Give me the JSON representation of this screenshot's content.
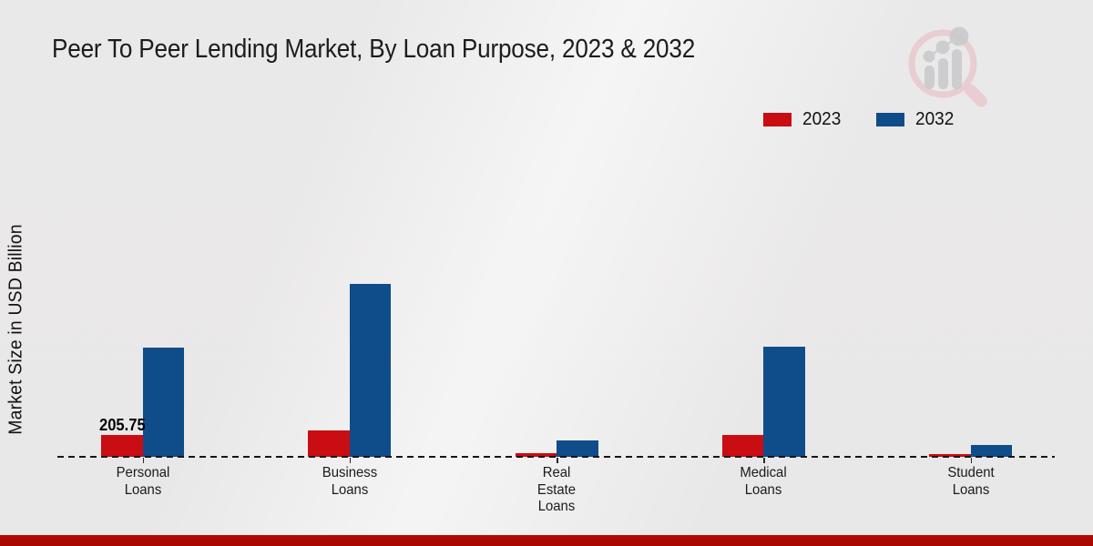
{
  "chart_data": {
    "type": "bar",
    "title": "Peer To Peer Lending Market, By Loan Purpose, 2023 & 2032",
    "ylabel": "Market Size in USD Billion",
    "xlabel": "",
    "categories": [
      "Personal Loans",
      "Business Loans",
      "Real Estate Loans",
      "Medical Loans",
      "Student Loans"
    ],
    "series": [
      {
        "name": "2023",
        "color": "#c90d12",
        "values": [
          205.75,
          250,
          35,
          205,
          30
        ]
      },
      {
        "name": "2032",
        "color": "#0e4d89",
        "values": [
          1020,
          1615,
          155,
          1030,
          115
        ]
      }
    ],
    "ylim": [
      0,
      1700
    ],
    "grid": "off",
    "baseline_style": "dashed",
    "legend_position": "top-right",
    "data_labels": [
      {
        "series": "2023",
        "category": "Personal Loans",
        "text": "205.75",
        "value": 205.75
      }
    ]
  },
  "colors": {
    "accent_2023": "#c90d12",
    "accent_2032": "#0e4d89",
    "footer_bar": "#b30a02",
    "watermark_pink": "#e7c7cb",
    "watermark_gray": "#c9c9cd"
  },
  "branding": {
    "watermark": "magnifier-bar-chart-logo"
  }
}
